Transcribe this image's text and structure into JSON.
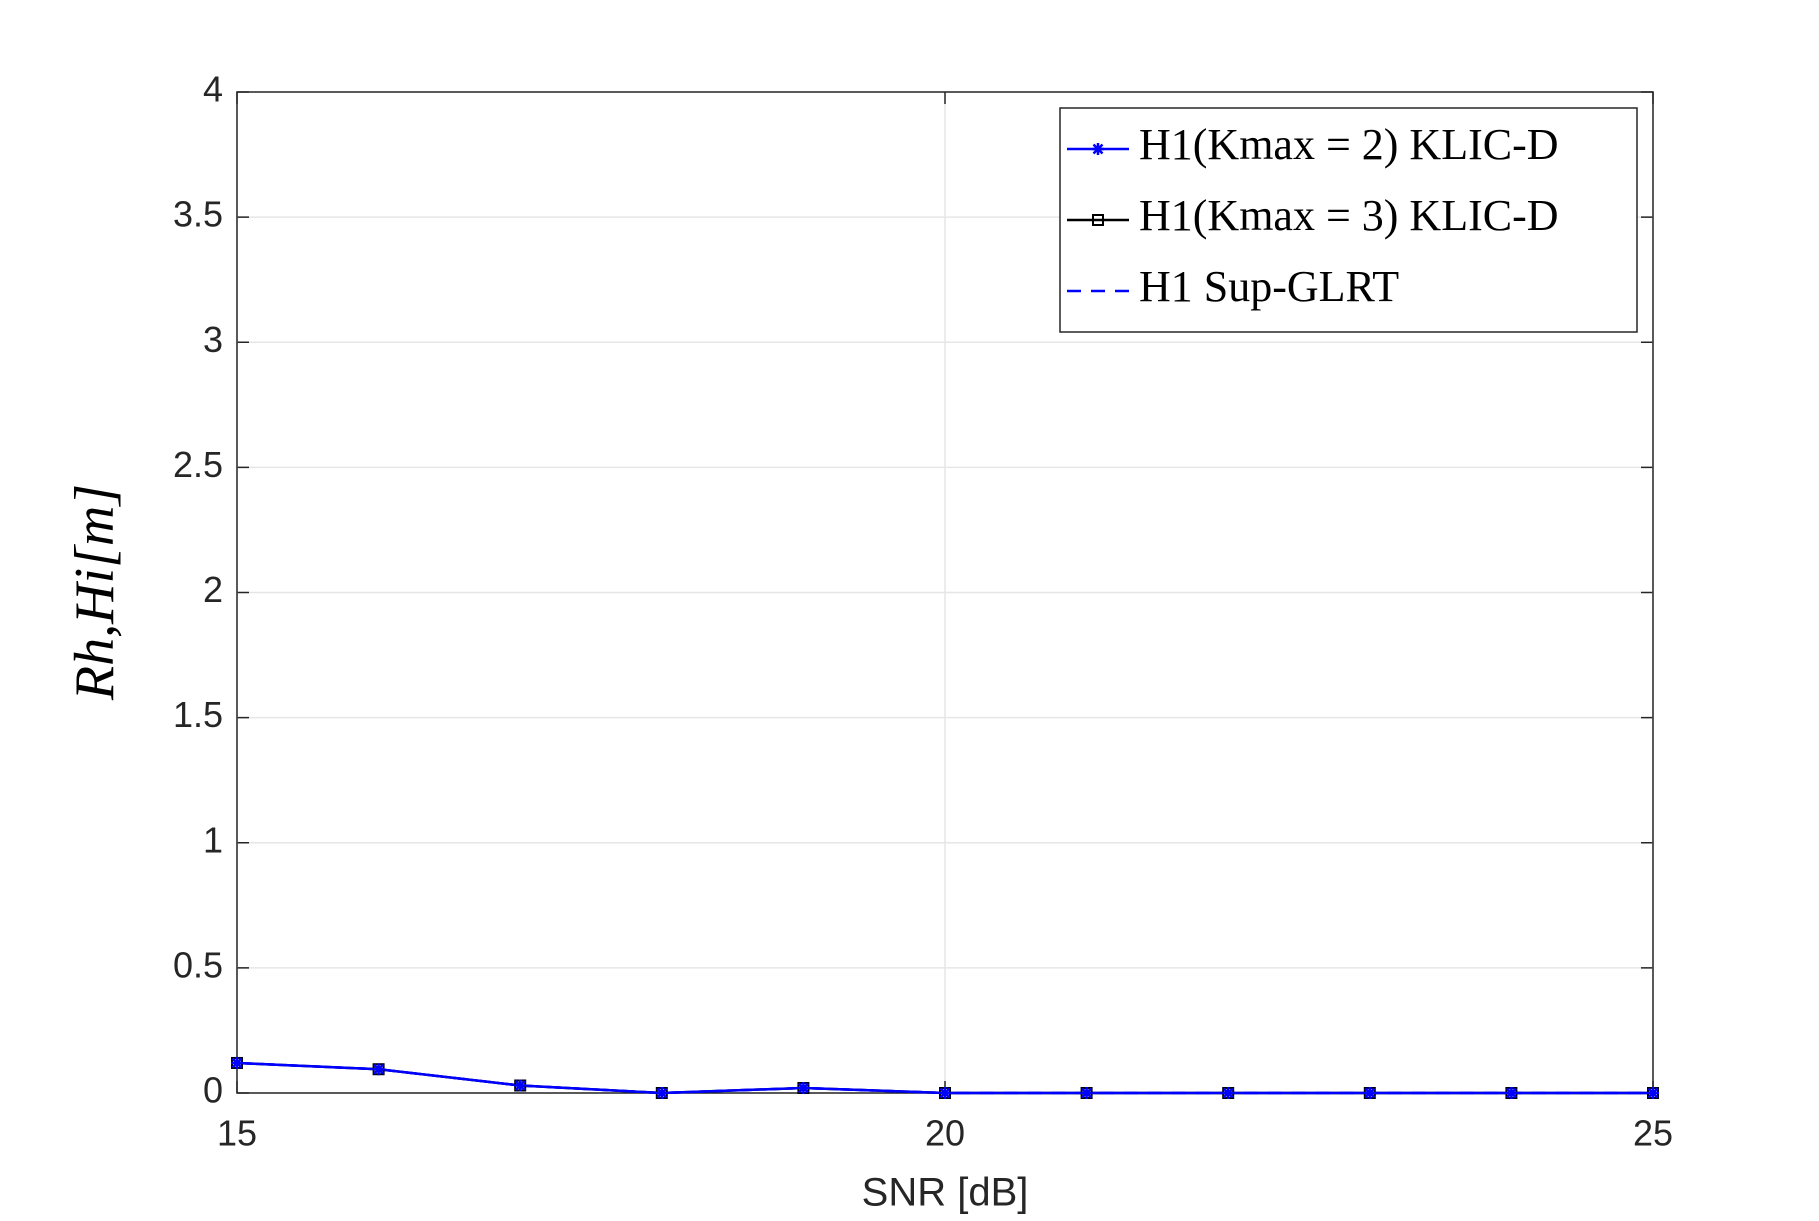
{
  "chart_data": {
    "type": "line",
    "x": [
      15,
      16,
      17,
      18,
      19,
      20,
      21,
      22,
      23,
      24,
      25
    ],
    "series": [
      {
        "name": "H1(Kmax = 2) KLIC-D",
        "color": "#0000ff",
        "dash": "solid",
        "marker": "star",
        "values": [
          0.12,
          0.095,
          0.03,
          0,
          0.02,
          0,
          0,
          0,
          0,
          0,
          0
        ]
      },
      {
        "name": "H1(Kmax = 3) KLIC-D",
        "color": "#000000",
        "dash": "solid",
        "marker": "square",
        "values": [
          0.12,
          0.095,
          0.03,
          0,
          0.02,
          0,
          0,
          0,
          0,
          0,
          0
        ]
      },
      {
        "name": "H1 Sup-GLRT",
        "color": "#0000ff",
        "dash": "dashed",
        "marker": "none",
        "values": [
          0.12,
          0.095,
          0.03,
          0,
          0.02,
          0,
          0,
          0,
          0,
          0,
          0
        ]
      }
    ],
    "x_label": "SNR [dB]",
    "y_label": "Rh,Hi[m]",
    "xlim": [
      15,
      25
    ],
    "xticks": [
      15,
      20,
      25
    ],
    "ylim": [
      0,
      4
    ],
    "yticks": [
      0,
      0.5,
      1,
      1.5,
      2,
      2.5,
      3,
      3.5,
      4
    ],
    "grid": true,
    "legend": "northeast"
  }
}
